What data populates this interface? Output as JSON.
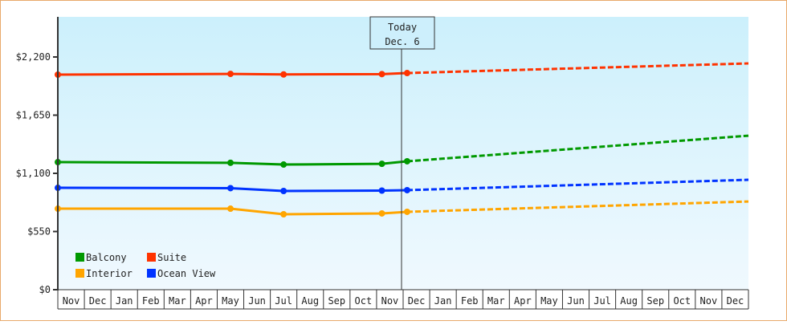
{
  "chart_data": {
    "type": "line",
    "title": "",
    "xlabel": "",
    "ylabel": "",
    "ylim": [
      0,
      2750
    ],
    "yticks": [
      {
        "value": 0,
        "label": "$0"
      },
      {
        "value": 550,
        "label": "$550"
      },
      {
        "value": 1100,
        "label": "$1,100"
      },
      {
        "value": 1650,
        "label": "$1,650"
      },
      {
        "value": 2200,
        "label": "$2,200"
      }
    ],
    "categories": [
      "Nov",
      "Dec",
      "Jan",
      "Feb",
      "Mar",
      "Apr",
      "May",
      "Jun",
      "Jul",
      "Aug",
      "Sep",
      "Oct",
      "Nov",
      "Dec",
      "Jan",
      "Feb",
      "Mar",
      "Apr",
      "May",
      "Jun",
      "Jul",
      "Aug",
      "Sep",
      "Oct",
      "Nov",
      "Dec"
    ],
    "today_marker": {
      "line1": "Today",
      "line2": "Dec. 6"
    },
    "legend_position": "lower-left inside",
    "grid": false,
    "series": [
      {
        "name": "Suite",
        "color": "#ff3300",
        "actual": [
          [
            0,
            2033
          ],
          [
            6.5,
            2040
          ],
          [
            8.5,
            2035
          ],
          [
            12.2,
            2038
          ],
          [
            13.15,
            2048
          ]
        ],
        "projected": [
          [
            13.15,
            2048
          ],
          [
            26.5,
            2139
          ]
        ]
      },
      {
        "name": "Balcony",
        "color": "#009900",
        "actual": [
          [
            0,
            1206
          ],
          [
            6.5,
            1200
          ],
          [
            8.5,
            1183
          ],
          [
            12.2,
            1190
          ],
          [
            13.15,
            1214
          ]
        ],
        "projected": [
          [
            13.15,
            1214
          ],
          [
            26.5,
            1456
          ]
        ]
      },
      {
        "name": "Ocean View",
        "color": "#0033ff",
        "actual": [
          [
            0,
            963
          ],
          [
            6.5,
            960
          ],
          [
            8.5,
            933
          ],
          [
            12.2,
            937
          ],
          [
            13.15,
            941
          ]
        ],
        "projected": [
          [
            13.15,
            941
          ],
          [
            26.5,
            1039
          ]
        ]
      },
      {
        "name": "Interior",
        "color": "#ffa500",
        "actual": [
          [
            0,
            766
          ],
          [
            6.5,
            766
          ],
          [
            8.5,
            713
          ],
          [
            12.2,
            721
          ],
          [
            13.15,
            736
          ]
        ],
        "projected": [
          [
            13.15,
            736
          ],
          [
            26.5,
            834
          ]
        ]
      }
    ]
  },
  "legend": [
    {
      "label": "Balcony",
      "color": "#009900"
    },
    {
      "label": "Suite",
      "color": "#ff3300"
    },
    {
      "label": "Interior",
      "color": "#ffa500"
    },
    {
      "label": "Ocean View",
      "color": "#0033ff"
    }
  ]
}
